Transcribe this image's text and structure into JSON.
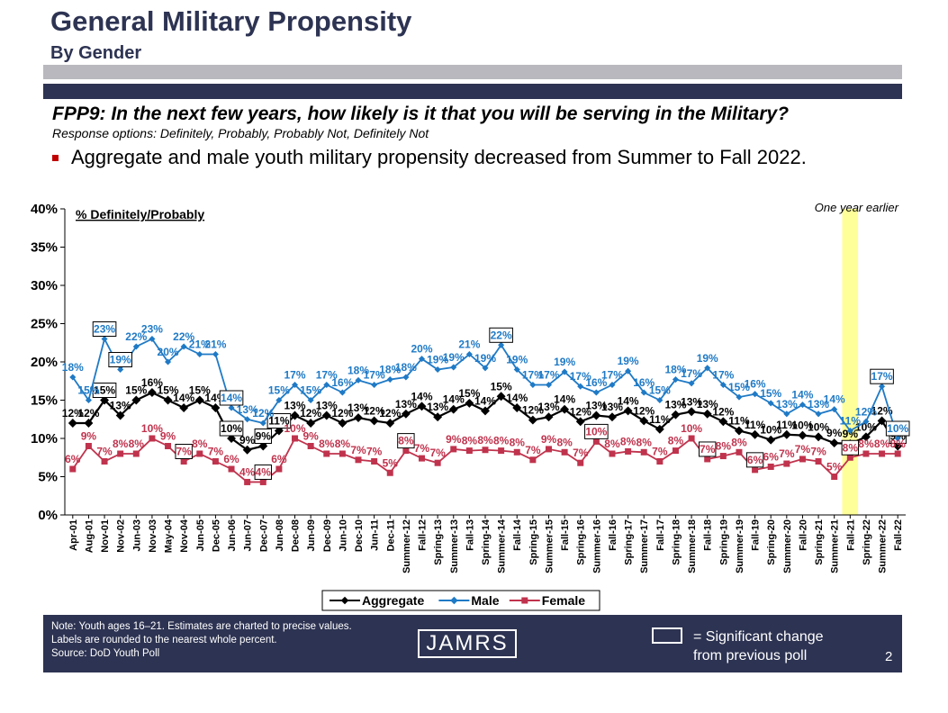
{
  "header": {
    "title": "General Military Propensity",
    "subtitle": "By Gender",
    "question": "FPP9: In the next few years, how likely is it that you will be serving in the Military?",
    "response_options": "Response options: Definitely, Probably, Probably Not, Definitely Not",
    "bullet": "Aggregate and male youth military propensity decreased from Summer to Fall 2022."
  },
  "footer": {
    "note_line1": "Note: Youth ages 16–21. Estimates are charted to precise values.",
    "note_line2": "Labels are rounded to the nearest whole percent.",
    "source": "Source: DoD Youth Poll",
    "logo": "JAMRS",
    "sig_line1": "= Significant change",
    "sig_line2": "from previous poll",
    "page_number": "2"
  },
  "chart_data": {
    "type": "line",
    "title": "% Definitely/Probably",
    "annotation": "One year earlier",
    "highlight_category": "Fall-21",
    "y_ticks": [
      "0%",
      "5%",
      "10%",
      "15%",
      "20%",
      "25%",
      "30%",
      "35%",
      "40%"
    ],
    "ylim": [
      0,
      40
    ],
    "legend_placement": "bottom",
    "x": [
      "Apr-01",
      "Aug-01",
      "Nov-01",
      "Nov-02",
      "Jun-03",
      "Nov-03",
      "May-04",
      "Nov-04",
      "Jun-05",
      "Dec-05",
      "Jun-06",
      "Jun-07",
      "Dec-07",
      "Jun-08",
      "Dec-08",
      "Jun-09",
      "Dec-09",
      "Jun-10",
      "Dec-10",
      "Jun-11",
      "Dec-11",
      "Summer-12",
      "Fall-12",
      "Spring-13",
      "Summer-13",
      "Fall-13",
      "Spring-14",
      "Summer-14",
      "Fall-14",
      "Spring-15",
      "Summer-15",
      "Fall-15",
      "Spring-16",
      "Summer-16",
      "Fall-16",
      "Spring-17",
      "Summer-17",
      "Fall-17",
      "Spring-18",
      "Summer-18",
      "Fall-18",
      "Spring-19",
      "Summer-19",
      "Fall-19",
      "Spring-20",
      "Summer-20",
      "Fall-20",
      "Spring-21",
      "Summer-21",
      "Fall-21",
      "Spring-22",
      "Summer-22",
      "Fall-22"
    ],
    "x_labels": [
      "Apr-01",
      "Aug-01",
      "Nov-01",
      "Nov-02",
      "Jun-03",
      "Nov-03",
      "May-04",
      "Nov-04",
      "Jun-05",
      "Dec-05",
      "Jun-06",
      "Jun-07",
      "Dec-07",
      "Jun-08",
      "Dec-08",
      "Jun-09",
      "Dec-09",
      "Jun-10",
      "Dec-10",
      "Jun-11",
      "Dec-11",
      "Summer-12",
      "Fall-12",
      "Spring-13",
      "Summer-13",
      "Fall-13",
      "Spring-14",
      "Summer-14",
      "Fall-14",
      "Spring-15",
      "Summer-15",
      "Fall-15",
      "Spring-16",
      "Summer-16",
      "Fall-16",
      "Spring-17",
      "Summer-17",
      "Fall-17",
      "Spring-18",
      "Summer-18",
      "Fall-18",
      "Spring-19",
      "Summer-19",
      "Fall-19",
      "Spring-20",
      "Summer-20",
      "Fall-20",
      "Spring-21",
      "Summer-21",
      "Fall-21",
      "Spring-22",
      "Summer-22",
      "Fall-22"
    ],
    "series": [
      {
        "name": "Aggregate",
        "color": "#000000",
        "values": [
          12,
          12,
          15,
          13,
          15,
          16,
          15,
          14,
          15,
          14,
          10,
          8.5,
          9,
          11,
          13,
          12,
          13,
          12,
          12.7,
          12.3,
          12,
          13.2,
          14.2,
          12.8,
          13.8,
          14.6,
          13.6,
          15.5,
          14,
          12.4,
          12.8,
          13.8,
          12.2,
          13,
          12.8,
          13.6,
          12.3,
          11.2,
          13.1,
          13.5,
          13.2,
          12.2,
          11,
          10.5,
          9.8,
          10.5,
          10.4,
          10.2,
          9.4,
          9.3,
          10.2,
          12.3,
          9
        ],
        "labels": [
          "12%",
          "12%",
          "15%",
          "13%",
          "15%",
          "16%",
          "15%",
          "14%",
          "15%",
          "14%",
          "10%",
          "9%",
          "9%",
          "11%",
          "13%",
          "12%",
          "13%",
          "12%",
          "13%",
          "12%",
          "12%",
          "13%",
          "14%",
          "13%",
          "14%",
          "15%",
          "14%",
          "15%",
          "14%",
          "12%",
          "13%",
          "14%",
          "12%",
          "13%",
          "13%",
          "14%",
          "12%",
          "11%",
          "13%",
          "13%",
          "13%",
          "12%",
          "11%",
          "11%",
          "10%",
          "11%",
          "10%",
          "10%",
          "9%",
          "9%",
          "10%",
          "12%",
          "9%"
        ],
        "boxed": [
          2,
          10,
          12,
          13,
          52
        ]
      },
      {
        "name": "Male",
        "color": "#1f7ac6",
        "values": [
          18,
          15,
          23,
          19,
          22,
          23,
          20,
          22,
          21,
          21,
          14,
          12.5,
          12,
          15,
          17,
          15,
          17,
          16,
          17.6,
          17,
          17.7,
          18,
          20.4,
          19,
          19.3,
          21,
          19.2,
          22.2,
          19,
          17,
          17,
          18.7,
          16.8,
          16,
          17,
          18.8,
          16,
          15,
          17.7,
          17.2,
          19.2,
          17,
          15.4,
          15.8,
          14.6,
          13.2,
          14.4,
          13.2,
          13.8,
          11,
          12.2,
          16.8,
          10
        ],
        "labels": [
          "18%",
          "15%",
          "23%",
          "19%",
          "22%",
          "23%",
          "20%",
          "22%",
          "21%",
          "21%",
          "14%",
          "13%",
          "12%",
          "15%",
          "17%",
          "15%",
          "17%",
          "16%",
          "18%",
          "17%",
          "18%",
          "18%",
          "20%",
          "19%",
          "19%",
          "21%",
          "19%",
          "22%",
          "19%",
          "17%",
          "17%",
          "19%",
          "17%",
          "16%",
          "17%",
          "19%",
          "16%",
          "15%",
          "18%",
          "17%",
          "19%",
          "17%",
          "15%",
          "16%",
          "15%",
          "13%",
          "14%",
          "13%",
          "14%",
          "11%",
          "12%",
          "17%",
          "10%"
        ],
        "boxed": [
          2,
          3,
          10,
          27,
          51,
          52
        ]
      },
      {
        "name": "Female",
        "color": "#c0334d",
        "values": [
          6,
          9,
          7,
          8,
          8,
          10,
          9,
          7,
          8,
          7,
          6,
          4.3,
          4.3,
          6,
          10,
          9,
          8,
          8,
          7.2,
          7,
          5.5,
          8.4,
          7.4,
          6.8,
          8.6,
          8.4,
          8.5,
          8.4,
          8.2,
          7.2,
          8.6,
          8.2,
          6.8,
          9.6,
          8,
          8.3,
          8.2,
          7,
          8.4,
          10,
          7.3,
          7.7,
          8.2,
          5.9,
          6.3,
          6.7,
          7.3,
          7,
          5,
          7.5,
          8,
          8,
          8
        ],
        "labels": [
          "6%",
          "9%",
          "7%",
          "8%",
          "8%",
          "10%",
          "9%",
          "7%",
          "8%",
          "7%",
          "6%",
          "4%",
          "4%",
          "6%",
          "10%",
          "9%",
          "8%",
          "8%",
          "7%",
          "7%",
          "5%",
          "8%",
          "7%",
          "7%",
          "9%",
          "8%",
          "8%",
          "8%",
          "8%",
          "7%",
          "9%",
          "8%",
          "7%",
          "10%",
          "8%",
          "8%",
          "8%",
          "7%",
          "8%",
          "10%",
          "7%",
          "8%",
          "8%",
          "6%",
          "6%",
          "7%",
          "7%",
          "7%",
          "5%",
          "8%",
          "8%",
          "8%",
          "8%"
        ],
        "boxed": [
          7,
          12,
          21,
          33,
          40,
          43,
          49
        ]
      }
    ]
  }
}
